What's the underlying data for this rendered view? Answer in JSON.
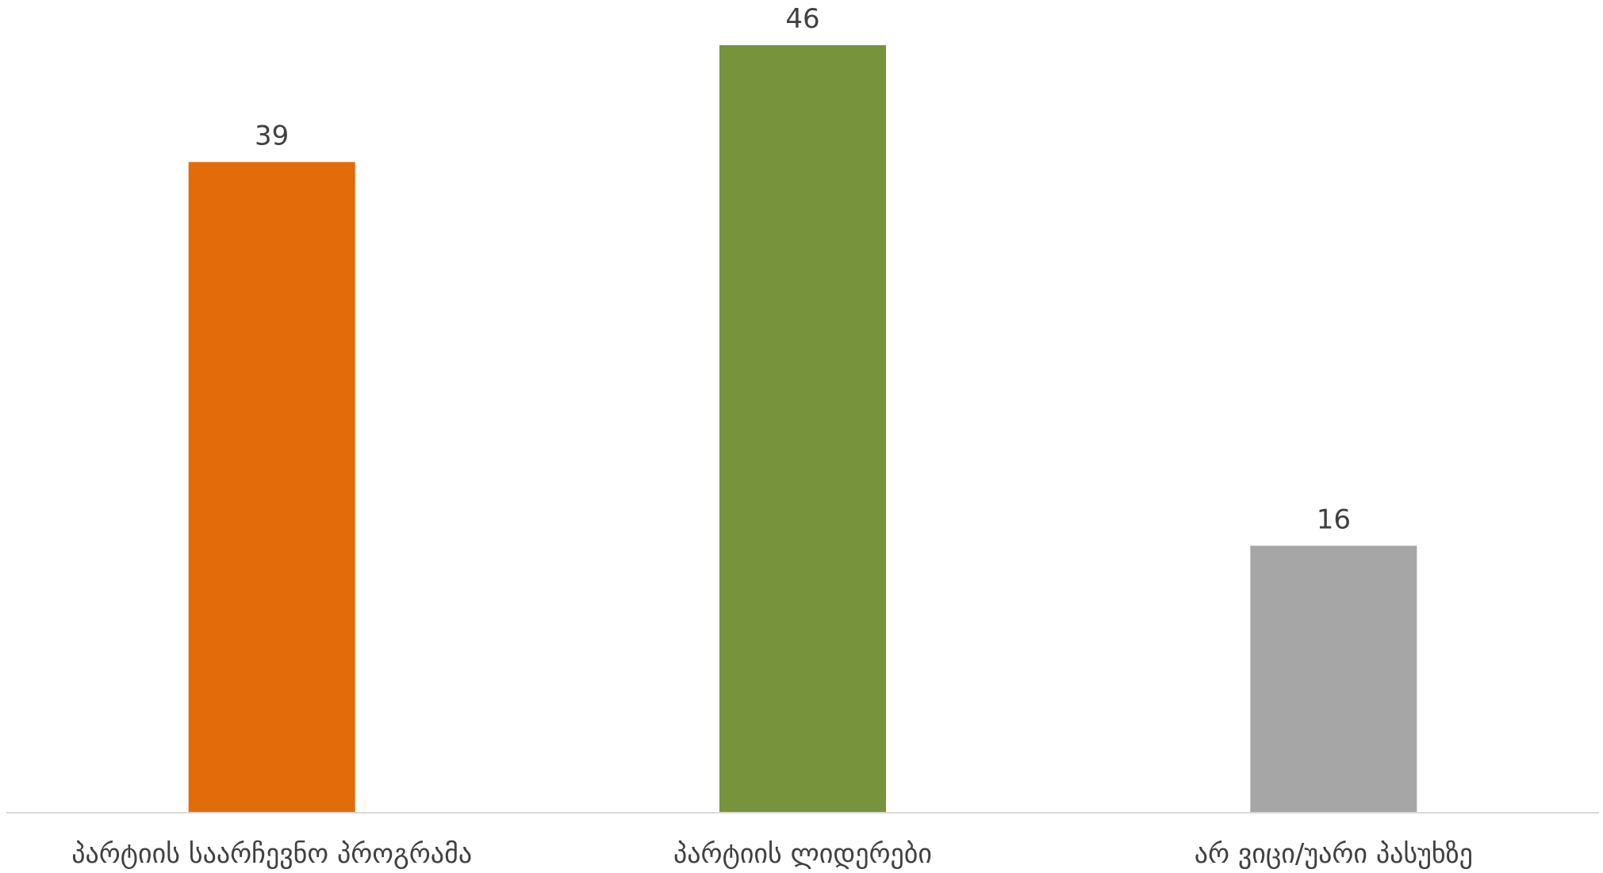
{
  "chart_data": {
    "type": "bar",
    "categories": [
      "პარტიის საარჩევნო პროგრამა",
      "პარტიის ლიდერები",
      "არ ვიცი/უარი პასუხზე"
    ],
    "values": [
      39,
      46,
      16
    ],
    "colors": [
      "#E36C0A",
      "#77933C",
      "#A6A6A6"
    ],
    "title": "",
    "xlabel": "",
    "ylabel": "",
    "ylim": [
      0,
      46
    ],
    "grid": false,
    "legend": "none",
    "data_labels": true
  }
}
